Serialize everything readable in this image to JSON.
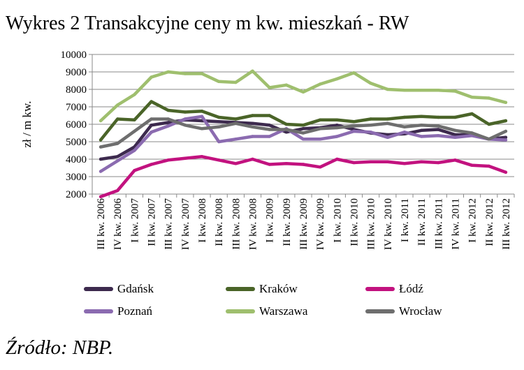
{
  "title": "Wykres 2 Transakcyjne ceny m kw. mieszkań - RW",
  "source": "Źródło: NBP.",
  "chart_data": {
    "type": "line",
    "title": "Wykres 2 Transakcyjne ceny m kw. mieszkań - RW",
    "xlabel": "",
    "ylabel": "zł / m kw.",
    "ylim": [
      2000,
      10000
    ],
    "yticks": [
      "2000",
      "3000",
      "4000",
      "5000",
      "6000",
      "7000",
      "8000",
      "9000",
      "10000"
    ],
    "grid": true,
    "legend_position": "bottom",
    "categories": [
      "III kw. 2006",
      "IV kw. 2006",
      "I kw. 2007",
      "II kw. 2007",
      "III kw. 2007",
      "IV kw. 2007",
      "I kw. 2008",
      "II kw. 2008",
      "III kw. 2008",
      "IV kw. 2008",
      "I kw. 2009",
      "II kw. 2009",
      "III kw. 2009",
      "IV kw. 2009",
      "I kw. 2010",
      "II kw. 2010",
      "III kw. 2010",
      "IV kw. 2010",
      "I kw. 2011",
      "II kw. 2011",
      "III kw. 2011",
      "IV kw. 2011",
      "I kw. 2012",
      "II kw. 2012",
      "III kw. 2012"
    ],
    "series": [
      {
        "name": "Gdańsk",
        "color": "#3d2a4e",
        "values": [
          4000,
          4150,
          4700,
          5950,
          6100,
          6250,
          6200,
          6150,
          6100,
          6050,
          5950,
          5550,
          5750,
          5800,
          5950,
          5700,
          5500,
          5400,
          5450,
          5650,
          5700,
          5400,
          5400,
          5150,
          5250
        ]
      },
      {
        "name": "Kraków",
        "color": "#4a6428",
        "values": [
          5100,
          6300,
          6250,
          7300,
          6800,
          6700,
          6750,
          6400,
          6300,
          6500,
          6500,
          6000,
          5950,
          6250,
          6250,
          6150,
          6300,
          6300,
          6400,
          6450,
          6400,
          6400,
          6600,
          6000,
          6200
        ]
      },
      {
        "name": "Łódź",
        "color": "#c2127f",
        "values": [
          1850,
          2200,
          3350,
          3700,
          3950,
          4050,
          4150,
          3950,
          3750,
          4000,
          3700,
          3750,
          3700,
          3550,
          4000,
          3800,
          3850,
          3850,
          3750,
          3850,
          3800,
          3950,
          3650,
          3600,
          3250
        ]
      },
      {
        "name": "Poznań",
        "color": "#8b6bb0",
        "values": [
          3300,
          3900,
          4500,
          5550,
          5900,
          6300,
          6450,
          5000,
          5150,
          5300,
          5300,
          5750,
          5150,
          5150,
          5300,
          5600,
          5550,
          5250,
          5550,
          5300,
          5350,
          5250,
          5350,
          5150,
          5100
        ]
      },
      {
        "name": "Warszawa",
        "color": "#9fbf6e",
        "values": [
          6200,
          7100,
          7700,
          8700,
          9000,
          8900,
          8900,
          8450,
          8400,
          9050,
          8100,
          8250,
          7850,
          8300,
          8600,
          8950,
          8350,
          8000,
          7950,
          7950,
          7950,
          7900,
          7550,
          7500,
          7250
        ]
      },
      {
        "name": "Wrocław",
        "color": "#6e6e6e",
        "values": [
          4700,
          4900,
          5600,
          6300,
          6300,
          5950,
          5750,
          5850,
          6050,
          5850,
          5700,
          5700,
          5500,
          5750,
          5800,
          5900,
          5950,
          6050,
          5850,
          5950,
          5900,
          5650,
          5500,
          5150,
          5600
        ]
      }
    ]
  }
}
